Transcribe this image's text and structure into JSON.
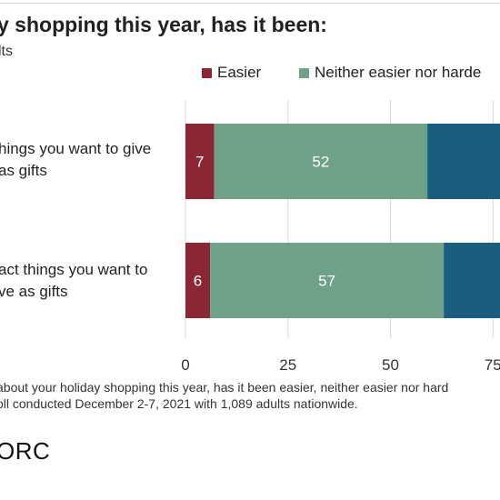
{
  "header": {
    "title": "y shopping this year, has it been:",
    "subtitle": "lts"
  },
  "category_labels": [
    {
      "line1": "hings you want to give",
      "line2": "as gifts"
    },
    {
      "line1": "act things you want to",
      "line2": "ve as gifts"
    }
  ],
  "footer": {
    "note1": "about your holiday shopping this year, has it been easier, neither easier nor hard",
    "note2": "oll conducted December 2-7, 2021 with 1,089 adults nationwide.",
    "logo": "ORC"
  },
  "colors": {
    "easier": "#8b2635",
    "neither": "#6fa088",
    "harder": "#1a5d7e",
    "grid": "#d9d9d9",
    "text": "#222222"
  },
  "chart_data": {
    "type": "bar",
    "orientation": "horizontal",
    "stacked": true,
    "categories": [
      "hings you want to give as gifts",
      "act things you want to ve as gifts"
    ],
    "series": [
      {
        "name": "Easier",
        "values": [
          7,
          6
        ]
      },
      {
        "name": "Neither easier nor harde",
        "values": [
          52,
          57
        ]
      },
      {
        "values": [
          41,
          37
        ]
      }
    ],
    "xlim": [
      0,
      100
    ],
    "xticks": [
      "0",
      "25",
      "50",
      "75"
    ],
    "legend_position": "top",
    "grid": true
  }
}
